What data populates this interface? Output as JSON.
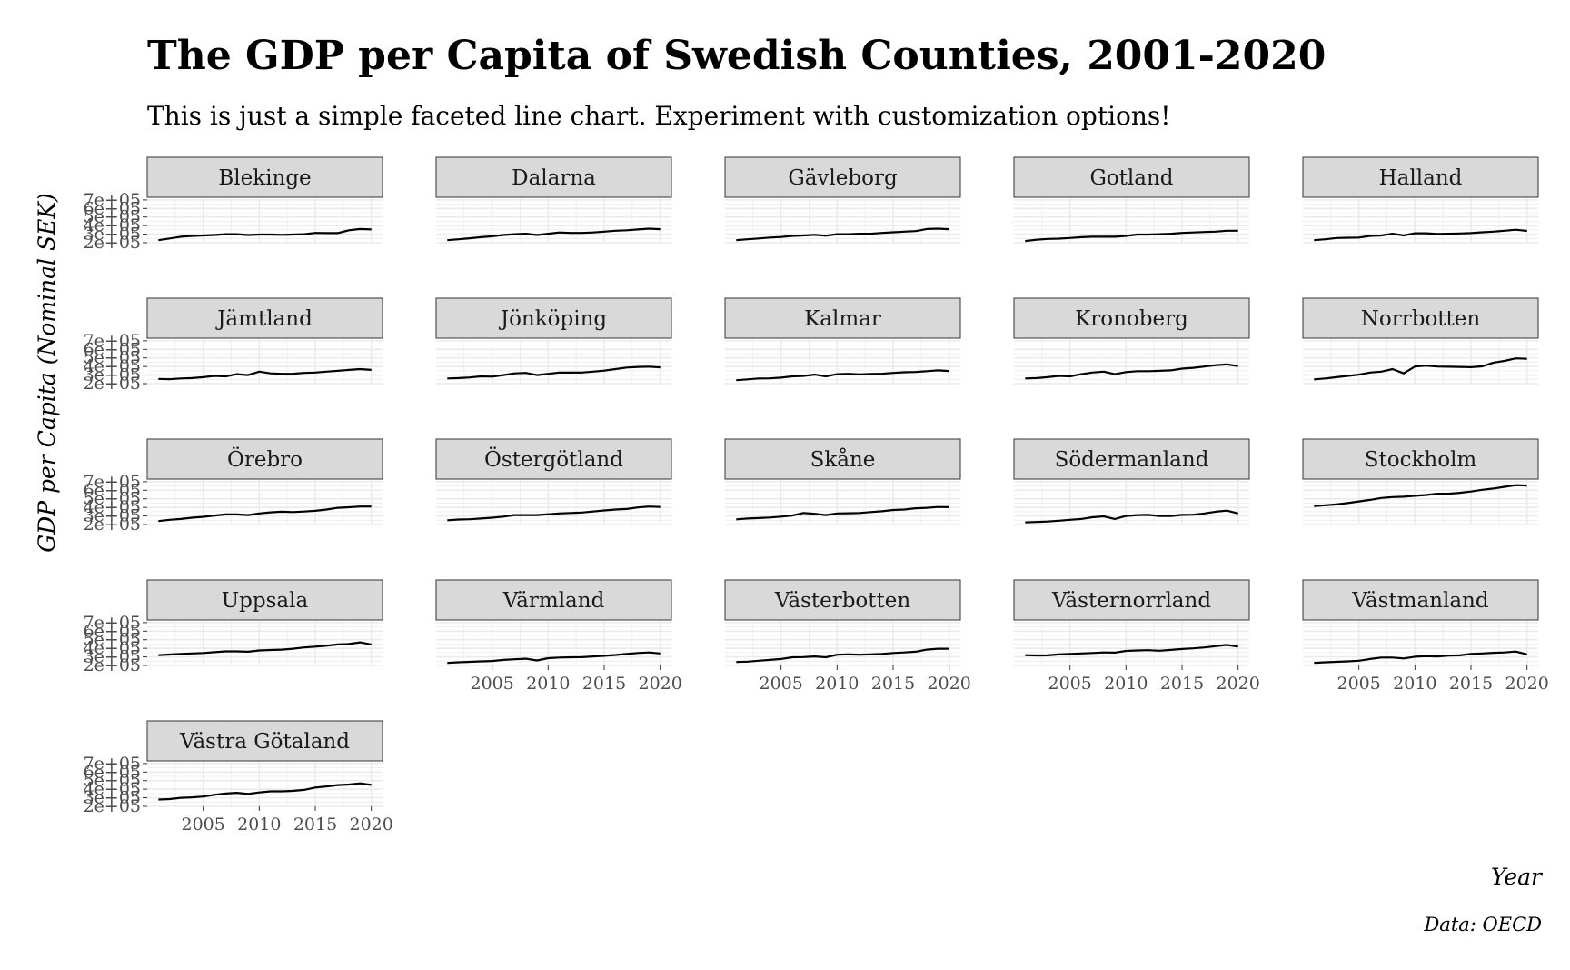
{
  "chart_data": {
    "type": "line",
    "title": "The GDP per Capita of Swedish Counties, 2001-2020",
    "subtitle": "This is just a simple faceted line chart. Experiment with customization options!",
    "xlabel": "Year",
    "ylabel": "GDP per Capita (Nominal SEK)",
    "caption": "Data: OECD",
    "x": [
      2001,
      2002,
      2003,
      2004,
      2005,
      2006,
      2007,
      2008,
      2009,
      2010,
      2011,
      2012,
      2013,
      2014,
      2015,
      2016,
      2017,
      2018,
      2019,
      2020
    ],
    "xlim": [
      2000,
      2021
    ],
    "ylim": [
      200000,
      720000
    ],
    "x_ticks": [
      "2005",
      "2010",
      "2015",
      "2020"
    ],
    "y_ticks": [
      "2e+05",
      "3e+05",
      "4e+05",
      "5e+05",
      "6e+05",
      "7e+05"
    ],
    "grid": true,
    "strip_color": "#d9d9d9",
    "line_color": "#000000",
    "grid_color": "#ebebeb",
    "series": [
      {
        "name": "Blekinge",
        "values": [
          230000,
          250000,
          270000,
          280000,
          285000,
          290000,
          300000,
          300000,
          290000,
          295000,
          295000,
          292000,
          295000,
          300000,
          315000,
          312000,
          312000,
          345000,
          360000,
          355000
        ]
      },
      {
        "name": "Dalarna",
        "values": [
          230000,
          240000,
          252000,
          265000,
          275000,
          290000,
          300000,
          305000,
          290000,
          305000,
          320000,
          315000,
          315000,
          320000,
          330000,
          340000,
          345000,
          355000,
          365000,
          358000
        ]
      },
      {
        "name": "Gävleborg",
        "values": [
          230000,
          240000,
          250000,
          260000,
          267000,
          280000,
          285000,
          292000,
          282000,
          300000,
          300000,
          305000,
          305000,
          315000,
          322000,
          330000,
          336000,
          360000,
          365000,
          358000
        ]
      },
      {
        "name": "Gotland",
        "values": [
          220000,
          235000,
          245000,
          248000,
          255000,
          265000,
          270000,
          270000,
          270000,
          280000,
          295000,
          295000,
          300000,
          305000,
          315000,
          320000,
          325000,
          330000,
          340000,
          340000
        ]
      },
      {
        "name": "Halland",
        "values": [
          230000,
          240000,
          255000,
          258000,
          260000,
          280000,
          285000,
          305000,
          285000,
          310000,
          310000,
          302000,
          305000,
          308000,
          312000,
          322000,
          330000,
          340000,
          352000,
          338000
        ]
      },
      {
        "name": "Jämtland",
        "values": [
          255000,
          252000,
          260000,
          265000,
          275000,
          290000,
          285000,
          310000,
          300000,
          340000,
          320000,
          315000,
          316000,
          325000,
          330000,
          340000,
          350000,
          360000,
          370000,
          360000
        ]
      },
      {
        "name": "Jönköping",
        "values": [
          260000,
          265000,
          272000,
          285000,
          282000,
          300000,
          320000,
          325000,
          300000,
          315000,
          330000,
          328000,
          330000,
          340000,
          352000,
          370000,
          388000,
          395000,
          398000,
          390000
        ]
      },
      {
        "name": "Kalmar",
        "values": [
          240000,
          250000,
          260000,
          262000,
          270000,
          285000,
          290000,
          305000,
          285000,
          310000,
          315000,
          307000,
          312000,
          316000,
          325000,
          333000,
          336000,
          345000,
          355000,
          348000
        ]
      },
      {
        "name": "Kronoberg",
        "values": [
          260000,
          265000,
          275000,
          290000,
          285000,
          310000,
          330000,
          340000,
          310000,
          335000,
          345000,
          345000,
          350000,
          355000,
          375000,
          385000,
          400000,
          415000,
          425000,
          405000
        ]
      },
      {
        "name": "Norrbotten",
        "values": [
          250000,
          260000,
          275000,
          290000,
          305000,
          330000,
          340000,
          370000,
          320000,
          400000,
          410000,
          400000,
          397000,
          395000,
          392000,
          402000,
          445000,
          465000,
          495000,
          490000
        ]
      },
      {
        "name": "Örebro",
        "values": [
          240000,
          255000,
          265000,
          280000,
          290000,
          305000,
          318000,
          318000,
          310000,
          330000,
          342000,
          350000,
          345000,
          352000,
          360000,
          375000,
          395000,
          402000,
          410000,
          410000
        ]
      },
      {
        "name": "Östergötland",
        "values": [
          250000,
          258000,
          262000,
          270000,
          280000,
          292000,
          310000,
          310000,
          310000,
          320000,
          330000,
          335000,
          340000,
          352000,
          365000,
          375000,
          382000,
          400000,
          410000,
          405000
        ]
      },
      {
        "name": "Skåne",
        "values": [
          260000,
          270000,
          275000,
          282000,
          292000,
          305000,
          335000,
          325000,
          310000,
          330000,
          332000,
          335000,
          345000,
          355000,
          370000,
          375000,
          390000,
          395000,
          405000,
          403000
        ]
      },
      {
        "name": "Södermanland",
        "values": [
          225000,
          230000,
          235000,
          245000,
          255000,
          265000,
          285000,
          295000,
          265000,
          300000,
          310000,
          312000,
          300000,
          300000,
          312000,
          315000,
          330000,
          350000,
          362000,
          330000
        ]
      },
      {
        "name": "Stockholm",
        "values": [
          415000,
          425000,
          435000,
          450000,
          470000,
          488000,
          510000,
          520000,
          525000,
          535000,
          545000,
          560000,
          560000,
          570000,
          585000,
          605000,
          620000,
          640000,
          660000,
          655000
        ]
      },
      {
        "name": "Uppsala",
        "values": [
          320000,
          327000,
          335000,
          340000,
          345000,
          355000,
          365000,
          365000,
          360000,
          375000,
          380000,
          385000,
          395000,
          410000,
          420000,
          430000,
          445000,
          450000,
          470000,
          445000
        ]
      },
      {
        "name": "Värmland",
        "values": [
          230000,
          237000,
          242000,
          248000,
          252000,
          265000,
          272000,
          278000,
          258000,
          285000,
          292000,
          295000,
          297000,
          305000,
          312000,
          322000,
          335000,
          345000,
          352000,
          340000
        ]
      },
      {
        "name": "Västerbotten",
        "values": [
          240000,
          245000,
          255000,
          265000,
          275000,
          295000,
          298000,
          305000,
          295000,
          325000,
          330000,
          325000,
          330000,
          335000,
          345000,
          352000,
          360000,
          385000,
          395000,
          395000
        ]
      },
      {
        "name": "Västernorrland",
        "values": [
          320000,
          317000,
          318000,
          328000,
          335000,
          340000,
          345000,
          352000,
          350000,
          370000,
          375000,
          378000,
          372000,
          382000,
          392000,
          400000,
          410000,
          425000,
          440000,
          420000
        ]
      },
      {
        "name": "Västmanland",
        "values": [
          230000,
          237000,
          242000,
          248000,
          255000,
          275000,
          292000,
          292000,
          282000,
          302000,
          308000,
          305000,
          315000,
          318000,
          335000,
          340000,
          348000,
          352000,
          362000,
          330000
        ]
      },
      {
        "name": "Västra Götaland",
        "values": [
          280000,
          285000,
          300000,
          305000,
          315000,
          335000,
          350000,
          358000,
          345000,
          362000,
          375000,
          375000,
          380000,
          392000,
          420000,
          432000,
          448000,
          455000,
          468000,
          450000
        ]
      }
    ]
  }
}
